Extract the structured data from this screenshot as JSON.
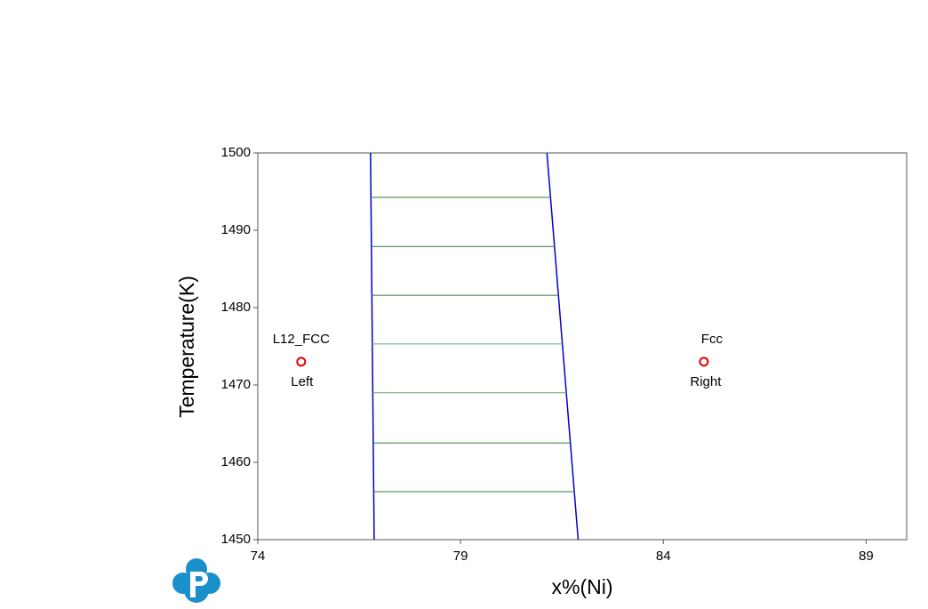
{
  "chart_data": {
    "type": "line",
    "xlabel": "x%(Ni)",
    "ylabel": "Temperature(K)",
    "xlim": [
      74,
      90
    ],
    "xticks": [
      74,
      79,
      84,
      89
    ],
    "ylim": [
      1450,
      1500
    ],
    "yticks": [
      1450,
      1460,
      1470,
      1480,
      1490,
      1500
    ],
    "series": [
      {
        "color": "#0000cc",
        "x": [
          76.78,
          76.87
        ],
        "y": [
          1500,
          1450
        ]
      },
      {
        "color": "#0000cc",
        "x": [
          81.13,
          81.9
        ],
        "y": [
          1500,
          1450
        ]
      },
      {
        "color": "#2e7d32",
        "x": [
          76.79,
          81.22
        ],
        "y": [
          1494.25,
          1494.25
        ]
      },
      {
        "color": "#2e7d32",
        "x": [
          76.8,
          81.32
        ],
        "y": [
          1487.9,
          1487.9
        ]
      },
      {
        "color": "#2e7d32",
        "x": [
          76.81,
          81.41
        ],
        "y": [
          1481.6,
          1481.6
        ]
      },
      {
        "color": "#6aaa6a",
        "x": [
          76.82,
          81.51
        ],
        "y": [
          1475.3,
          1475.3
        ]
      },
      {
        "color": "#6aaa6a",
        "x": [
          76.84,
          81.61
        ],
        "y": [
          1469.0,
          1469.0
        ]
      },
      {
        "color": "#2e7d32",
        "x": [
          76.85,
          81.71
        ],
        "y": [
          1462.5,
          1462.5
        ]
      },
      {
        "color": "#2e7d32",
        "x": [
          76.86,
          81.8
        ],
        "y": [
          1456.2,
          1456.2
        ]
      }
    ],
    "points": [
      {
        "phase": "L12_FCC",
        "label": "Left",
        "x": 75.07,
        "y": 1473,
        "color": "#e00000"
      },
      {
        "phase": "Fcc",
        "label": "Right",
        "x": 85.0,
        "y": 1473,
        "color": "#e00000"
      }
    ]
  }
}
